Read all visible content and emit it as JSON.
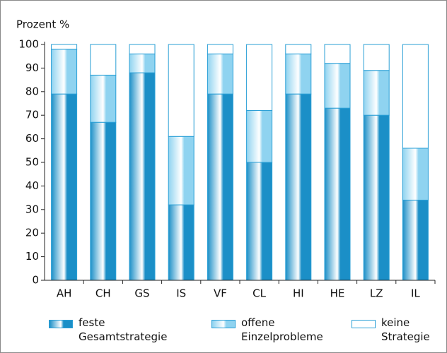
{
  "chart_data": {
    "type": "stacked_bar",
    "y_label": "Prozent %",
    "categories": [
      "AH",
      "CH",
      "GS",
      "IS",
      "VF",
      "CL",
      "HI",
      "HE",
      "LZ",
      "IL"
    ],
    "series": [
      {
        "name": "feste\nGesamtstrategie",
        "color": "#1b8fc7",
        "values": [
          79,
          67,
          88,
          32,
          79,
          50,
          79,
          73,
          70,
          34
        ]
      },
      {
        "name": "offene\nEinzelprobleme",
        "color": "#8fd3f0",
        "values": [
          19,
          20,
          8,
          29,
          17,
          22,
          17,
          19,
          19,
          22
        ]
      },
      {
        "name": "keine\nStrategie",
        "color": "#ffffff",
        "values": [
          2,
          13,
          4,
          39,
          4,
          28,
          4,
          8,
          11,
          44
        ]
      }
    ],
    "ylim": [
      0,
      100
    ],
    "yticks": [
      0,
      10,
      20,
      30,
      40,
      50,
      60,
      70,
      80,
      90,
      100
    ]
  }
}
